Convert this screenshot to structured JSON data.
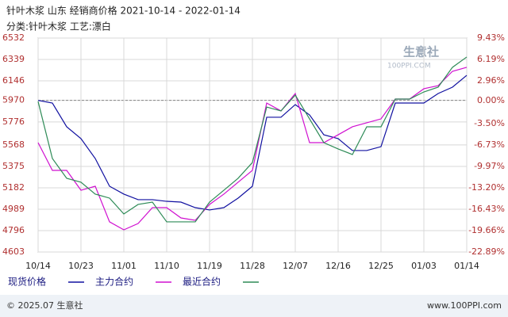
{
  "chart_data": {
    "type": "line",
    "title": "针叶木浆 山东 经销商价格 2021-10-14 - 2022-01-14",
    "subtitle": "分类:针叶木浆 工艺:漂白",
    "watermark": [
      "生意社",
      "100PPI.COM"
    ],
    "footer_left": "© 2025.07 生意社",
    "footer_right": "www.100PPI.com",
    "categories": [
      "10/14",
      null,
      null,
      "10/23",
      null,
      null,
      "11/01",
      null,
      null,
      "11/10",
      null,
      null,
      "11/19",
      null,
      null,
      "11/28",
      null,
      null,
      "12/07",
      null,
      null,
      "12/16",
      null,
      null,
      "12/25",
      null,
      null,
      "01/03",
      null,
      null,
      "01/14"
    ],
    "ylim": [
      4603,
      6532
    ],
    "yticks": [
      4603,
      4796,
      4989,
      5182,
      5375,
      5568,
      5776,
      5970,
      6146,
      6339,
      6532
    ],
    "y2lim": [
      -22.89,
      9.43
    ],
    "y2ticks": [
      {
        "value": -22.89,
        "label": "-22.89%"
      },
      {
        "value": -19.66,
        "label": "-19.66%"
      },
      {
        "value": -16.43,
        "label": "-16.43%"
      },
      {
        "value": -13.2,
        "label": "-13.20%"
      },
      {
        "value": -9.97,
        "label": "-9.97%"
      },
      {
        "value": -6.73,
        "label": "-6.73%"
      },
      {
        "value": -3.5,
        "label": "-3.50%"
      },
      {
        "value": 0,
        "label": "0.00%"
      },
      {
        "value": 2.96,
        "label": "2.96%"
      },
      {
        "value": 6.19,
        "label": "6.19%"
      },
      {
        "value": 9.43,
        "label": "9.43%"
      }
    ],
    "baseline": 5970,
    "grid": true,
    "series": [
      {
        "name": "现货价格",
        "color": "#1010a0",
        "values": [
          5970,
          5946,
          5732,
          5625,
          5446,
          5196,
          5125,
          5075,
          5075,
          5060,
          5053,
          5003,
          4982,
          5003,
          5089,
          5196,
          5818,
          5818,
          5932,
          5839,
          5660,
          5625,
          5518,
          5518,
          5553,
          5946,
          5946,
          5946,
          6032,
          6089,
          6196
        ]
      },
      {
        "name": "主力合约",
        "color": "#d010d0",
        "values": [
          5589,
          5339,
          5339,
          5160,
          5196,
          4875,
          4803,
          4860,
          5003,
          5003,
          4910,
          4889,
          5032,
          5125,
          5232,
          5339,
          5946,
          5875,
          6032,
          5589,
          5589,
          5660,
          5732,
          5768,
          5803,
          5982,
          5982,
          6075,
          6103,
          6232,
          6268
        ]
      },
      {
        "name": "最近合约",
        "color": "#2e8b57",
        "values": [
          5960,
          5446,
          5268,
          5232,
          5125,
          5089,
          4946,
          5032,
          5053,
          4875,
          4875,
          4875,
          5053,
          5160,
          5268,
          5410,
          5910,
          5875,
          6018,
          5803,
          5589,
          5532,
          5482,
          5732,
          5732,
          5982,
          5982,
          6046,
          6089,
          6268,
          6361
        ]
      }
    ]
  }
}
